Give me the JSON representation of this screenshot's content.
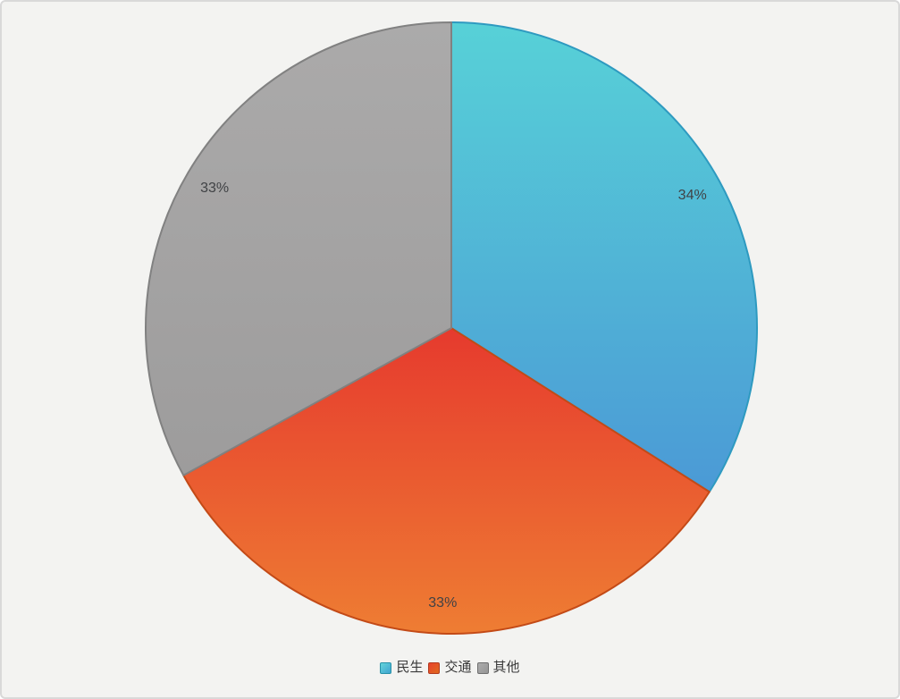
{
  "canvas": {
    "background_color": "#F3F3F1",
    "border_color": "#D9D9D9"
  },
  "chart_data": {
    "type": "pie",
    "title": "",
    "categories": [
      "民生",
      "交通",
      "其他"
    ],
    "values": [
      34,
      33,
      33
    ],
    "unit": "%",
    "start_angle_deg": 0,
    "direction": "clockwise",
    "legend_position": "bottom",
    "data_label_color": "#404245",
    "slices": [
      {
        "label": "民生",
        "value": 34,
        "percent_label": "34%",
        "color_start": "#57D1D7",
        "color_end": "#4B9AD6",
        "border_color": "#2E9AC0"
      },
      {
        "label": "交通",
        "value": 33,
        "percent_label": "33%",
        "color_start": "#E63A2E",
        "color_end": "#EE7D33",
        "border_color": "#C34A17"
      },
      {
        "label": "其他",
        "value": 33,
        "percent_label": "33%",
        "color_start": "#ABAAAA",
        "color_end": "#9D9C9C",
        "border_color": "#818181"
      }
    ]
  },
  "legend": {
    "items": [
      {
        "label": "民生",
        "swatch_start": "#63D4DA",
        "swatch_end": "#3FA3D0",
        "swatch_border": "#2791A8"
      },
      {
        "label": "交通",
        "swatch_start": "#E8432D",
        "swatch_end": "#E06A1E",
        "swatch_border": "#B03A20"
      },
      {
        "label": "其他",
        "swatch_start": "#ACACAC",
        "swatch_end": "#969696",
        "swatch_border": "#6F6F6F"
      }
    ]
  }
}
